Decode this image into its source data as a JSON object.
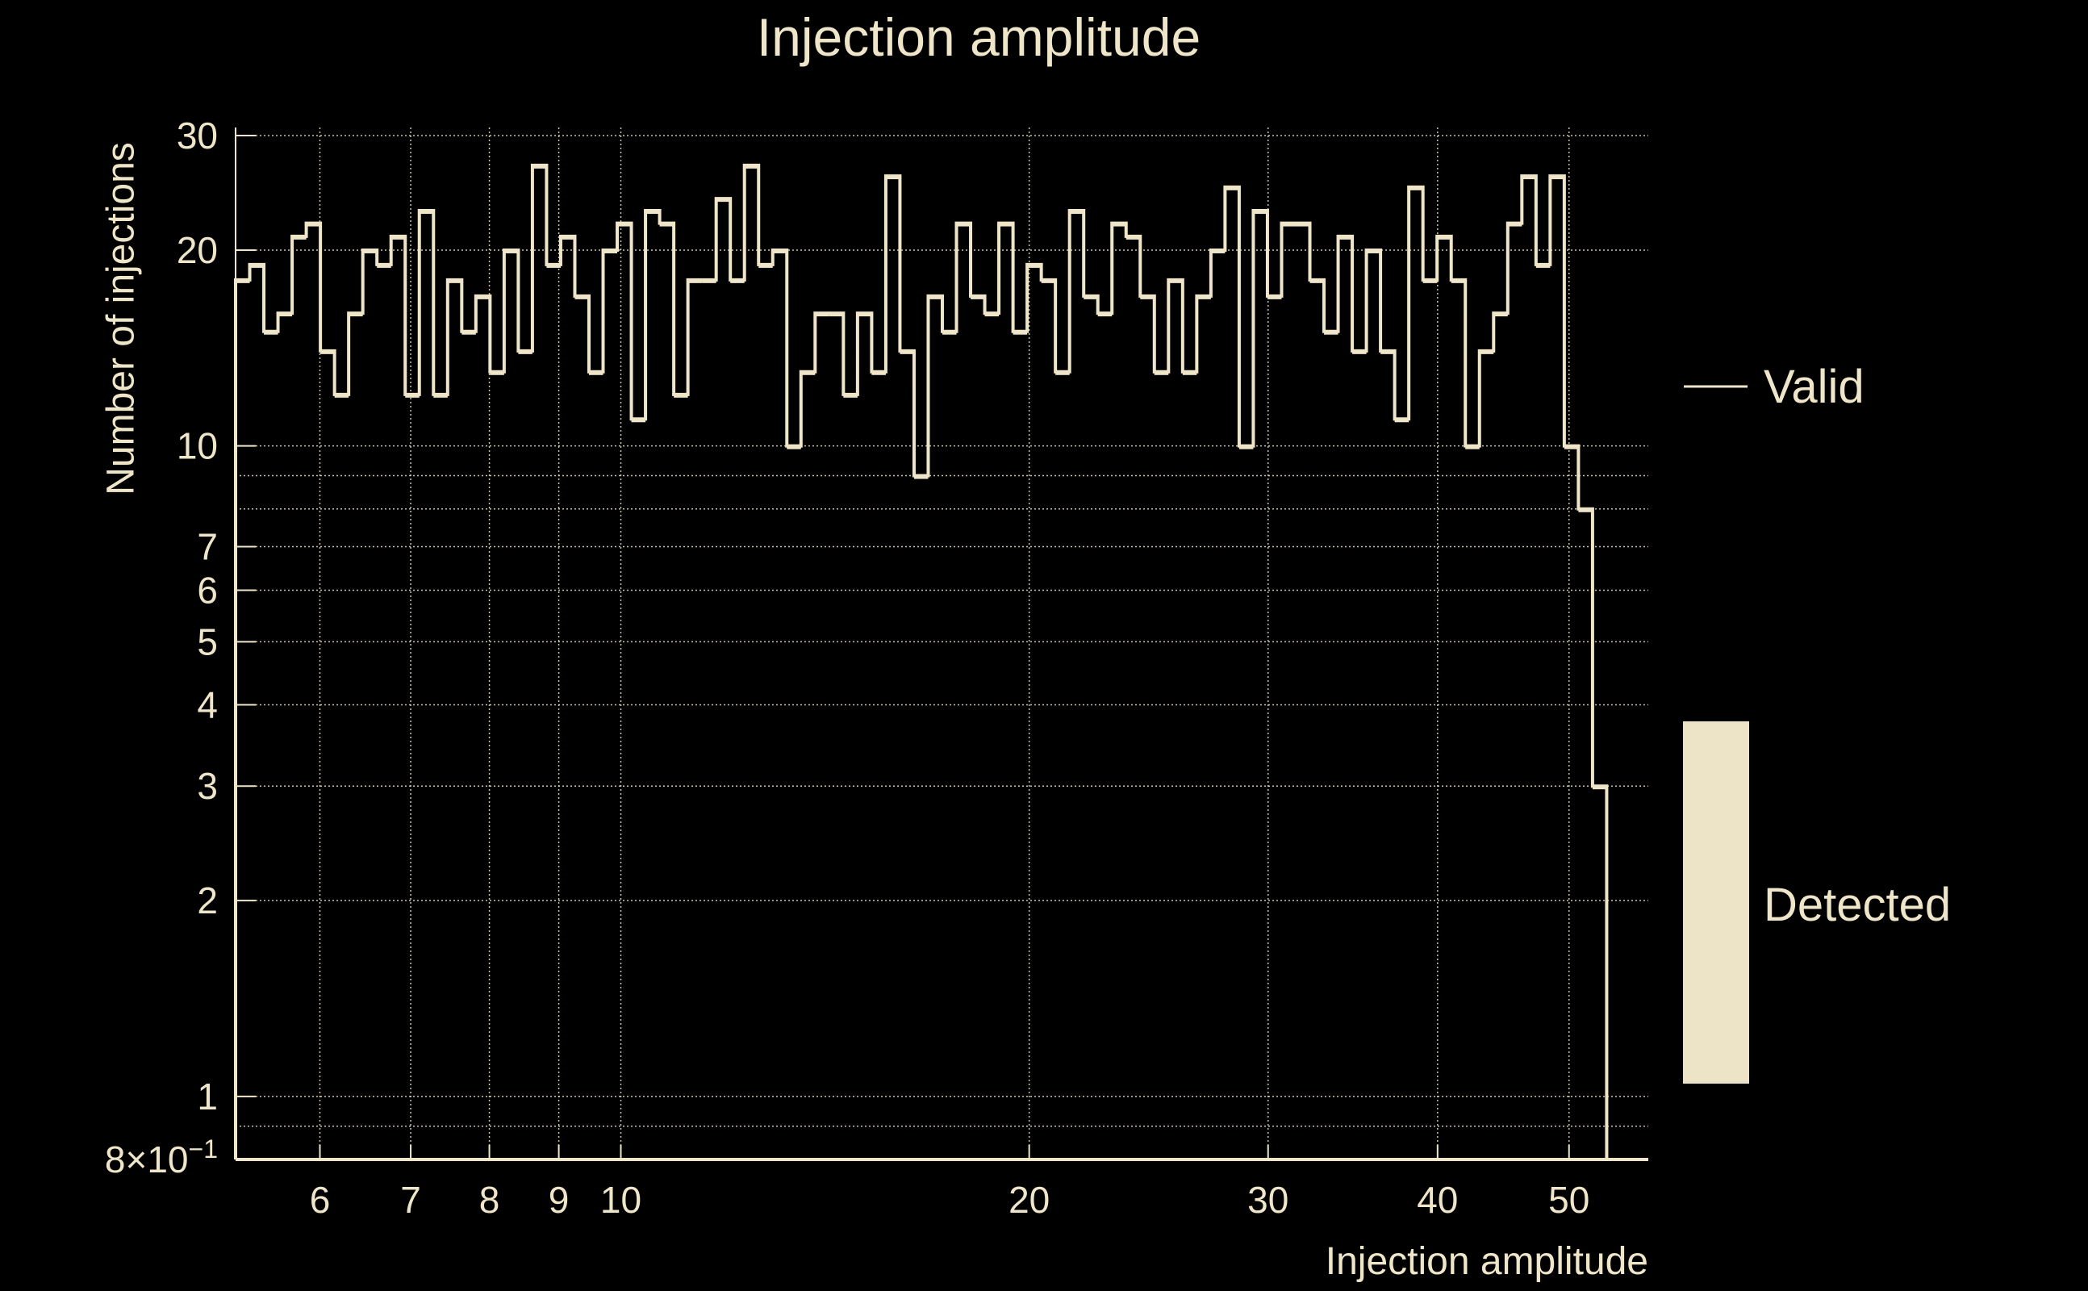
{
  "colors": {
    "foreground": "#efe5c8",
    "background": "#000000",
    "detected_patch": "#ede3c6"
  },
  "chart_data": {
    "type": "histogram-step",
    "title": "Injection amplitude",
    "xlabel": "Injection amplitude",
    "ylabel": "Number of injections",
    "xscale": "log",
    "yscale": "log",
    "xlim": [
      5.2,
      57.2
    ],
    "ylim": [
      0.8,
      30
    ],
    "bin_range": [
      5.2,
      53.3
    ],
    "grid": true,
    "legend_position": "right",
    "x_ticks": [
      {
        "value": 6,
        "label": "6"
      },
      {
        "value": 7,
        "label": "7"
      },
      {
        "value": 8,
        "label": "8"
      },
      {
        "value": 9,
        "label": "9"
      },
      {
        "value": 10,
        "label": "10"
      },
      {
        "value": 20,
        "label": "20"
      },
      {
        "value": 30,
        "label": "30"
      },
      {
        "value": 40,
        "label": "40"
      },
      {
        "value": 50,
        "label": "50"
      }
    ],
    "y_ticks": [
      {
        "value": 0.8,
        "label": "8×10",
        "exp": "−1"
      },
      {
        "value": 1,
        "label": "1"
      },
      {
        "value": 2,
        "label": "2"
      },
      {
        "value": 3,
        "label": "3"
      },
      {
        "value": 4,
        "label": "4"
      },
      {
        "value": 5,
        "label": "5"
      },
      {
        "value": 6,
        "label": "6"
      },
      {
        "value": 7,
        "label": "7"
      },
      {
        "value": 10,
        "label": "10"
      },
      {
        "value": 20,
        "label": "20"
      },
      {
        "value": 30,
        "label": "30"
      }
    ],
    "y_minor_grid": [
      0.9,
      8,
      9
    ],
    "series": [
      {
        "name": "Valid",
        "style": "step-line",
        "values": [
          18,
          19,
          15,
          16,
          21,
          22,
          14,
          12,
          16,
          20,
          19,
          21,
          12,
          23,
          12,
          18,
          15,
          17,
          13,
          20,
          14,
          27,
          19,
          21,
          17,
          13,
          20,
          22,
          11,
          23,
          22,
          12,
          18,
          18,
          24,
          18,
          27,
          19,
          20,
          10,
          13,
          16,
          16,
          12,
          16,
          13,
          26,
          14,
          9,
          17,
          15,
          22,
          17,
          16,
          22,
          15,
          19,
          18,
          13,
          23,
          17,
          16,
          22,
          21,
          17,
          13,
          18,
          13,
          17,
          20,
          25,
          10,
          23,
          17,
          22,
          22,
          18,
          15,
          21,
          14,
          20,
          14,
          11,
          25,
          18,
          21,
          18,
          10,
          14,
          16,
          22,
          26,
          19,
          26,
          10,
          8,
          3
        ]
      },
      {
        "name": "Detected",
        "style": "filled",
        "values": []
      }
    ]
  }
}
